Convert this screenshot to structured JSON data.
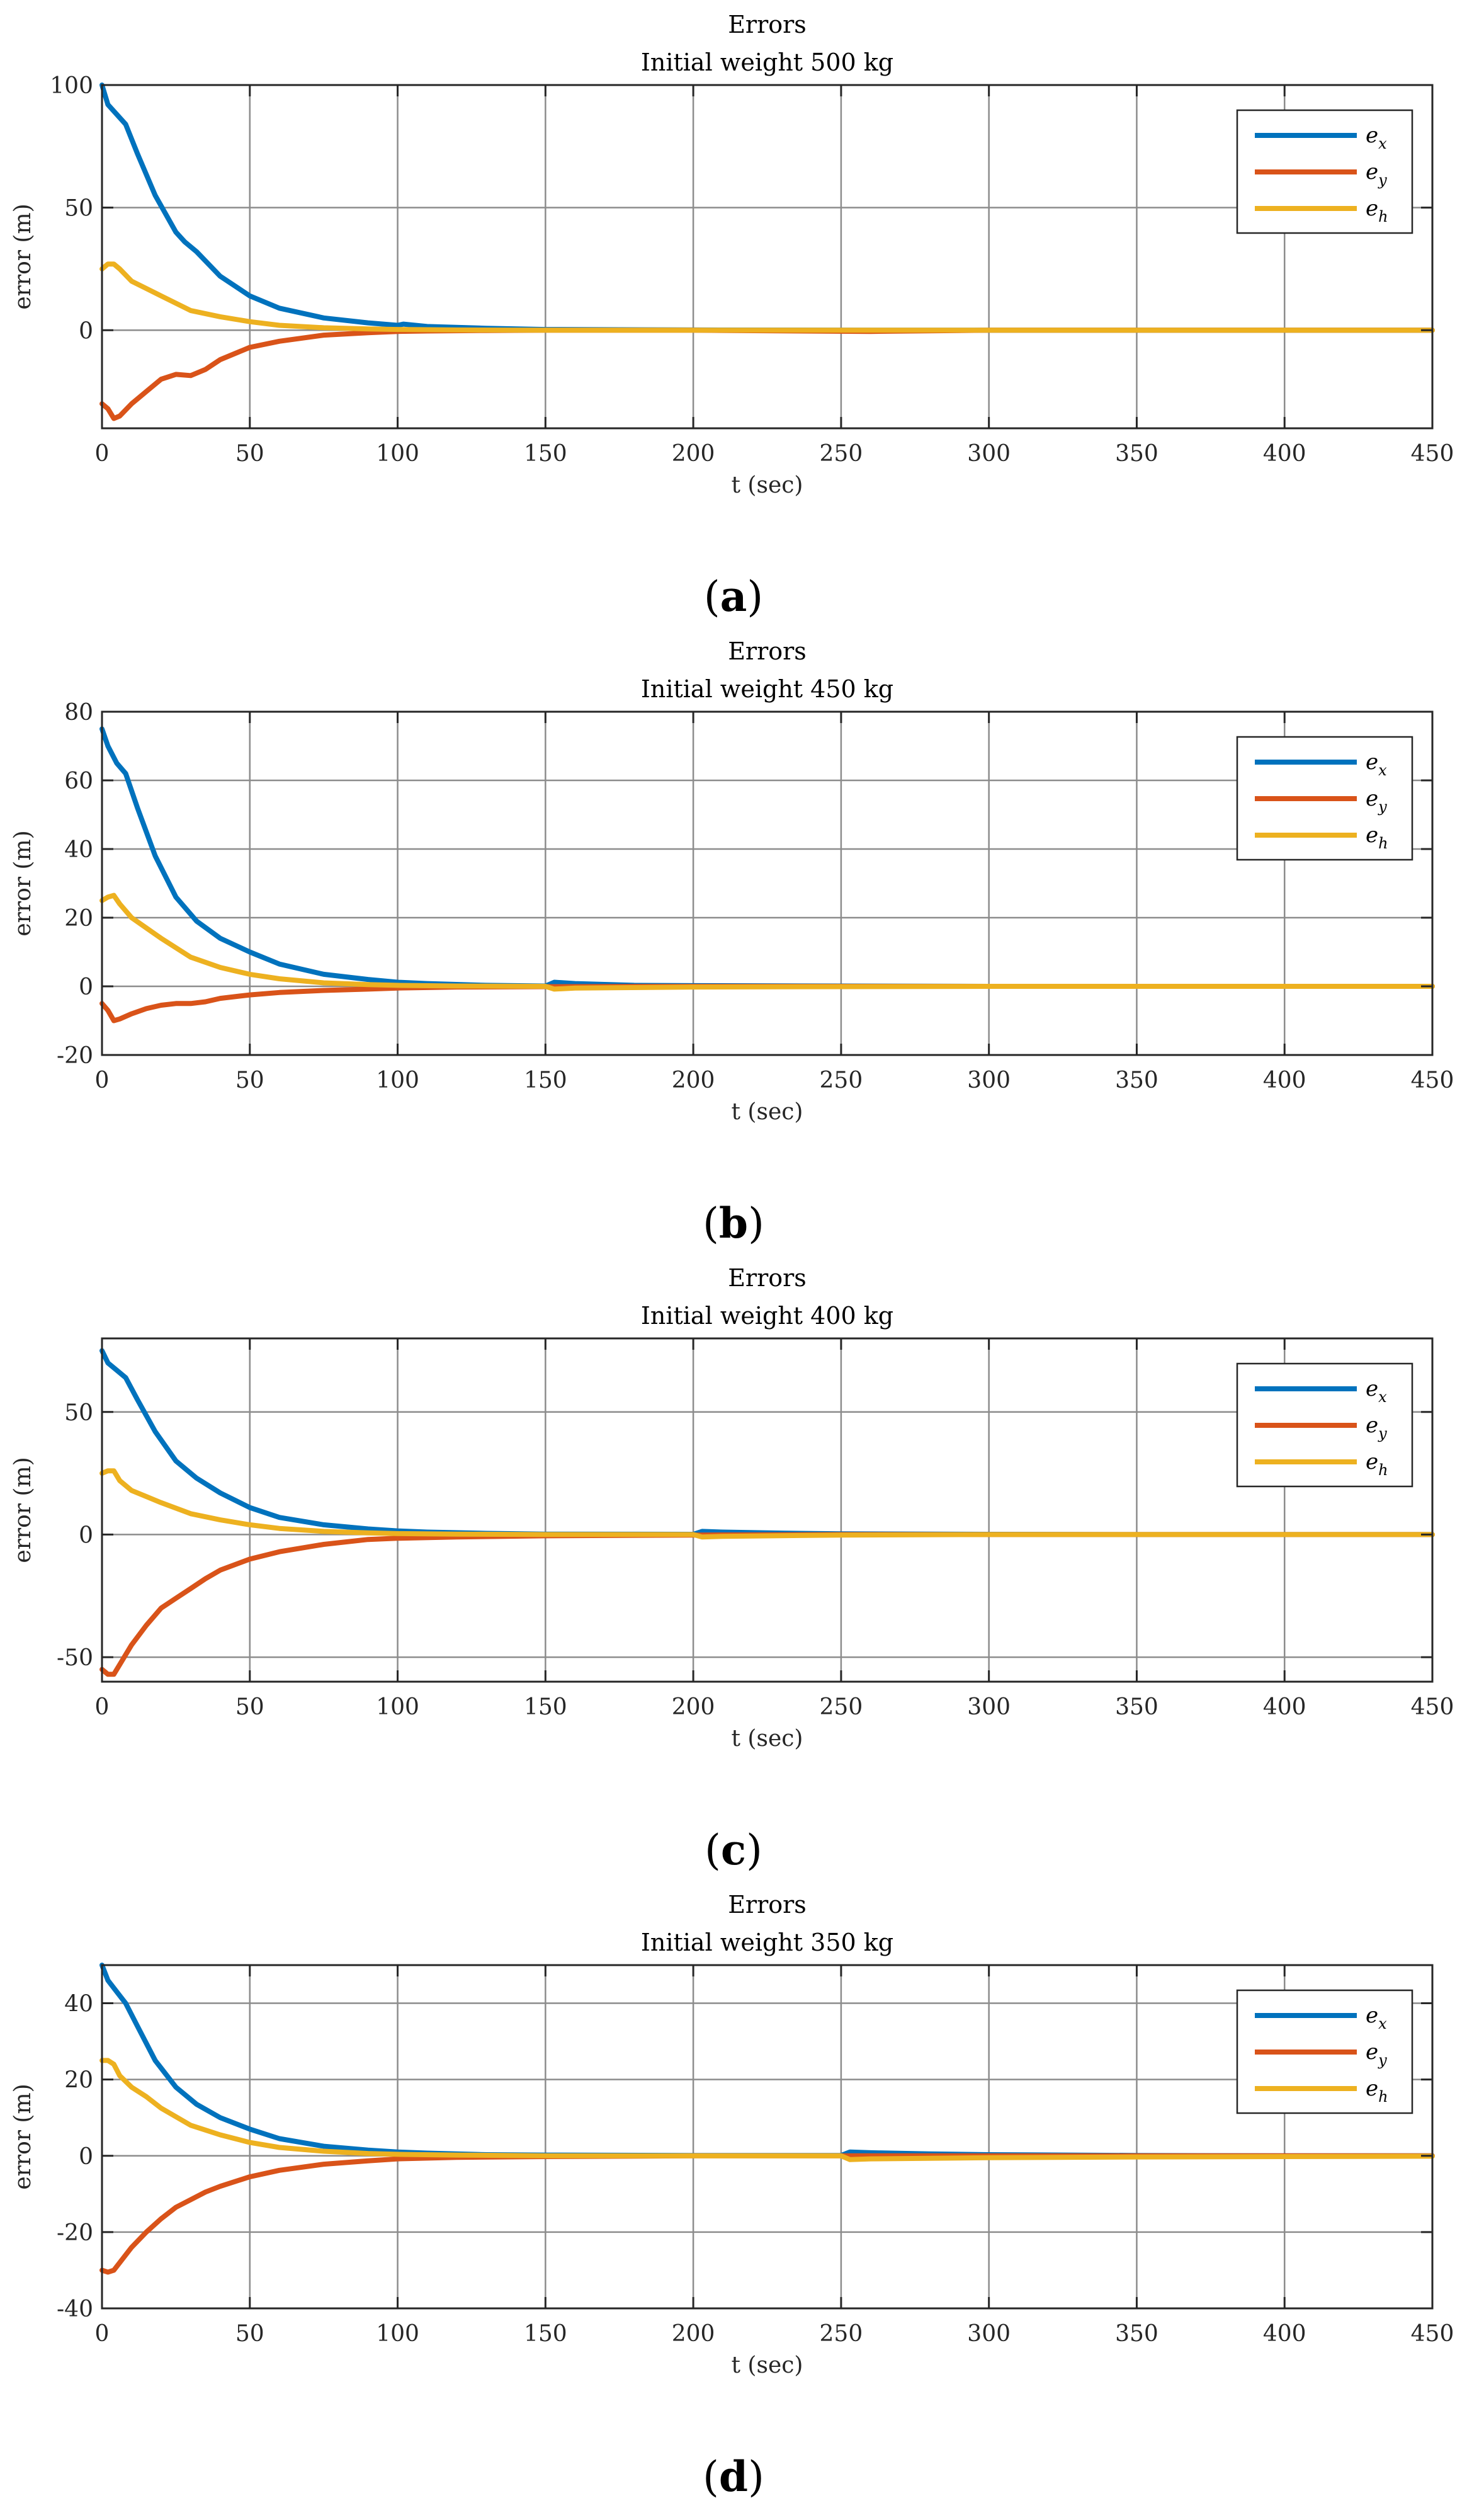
{
  "figure": {
    "subcaptions": [
      "(a)",
      "(b)",
      "(c)",
      "(d)"
    ]
  },
  "colors": {
    "e_x": "#0072BD",
    "e_y": "#D95319",
    "e_h": "#EDB120",
    "grid": "#8c8c8c",
    "axis": "#262626"
  },
  "chart_data": [
    {
      "type": "line",
      "title": "Errors",
      "subtitle": "Initial weight 500 kg",
      "xlabel": "t (sec)",
      "ylabel": "error (m)",
      "xlim": [
        0,
        450
      ],
      "ylim": [
        -40,
        100
      ],
      "xticks": [
        0,
        50,
        100,
        150,
        200,
        250,
        300,
        350,
        400,
        450
      ],
      "yticks": [
        0,
        50,
        100
      ],
      "grid": true,
      "legend": "top-right",
      "series": [
        {
          "name": "e_x",
          "label_base": "e",
          "label_sub": "x",
          "x": [
            0,
            2,
            5,
            8,
            12,
            18,
            25,
            28,
            32,
            40,
            50,
            60,
            75,
            90,
            100,
            102,
            110,
            130,
            150,
            200,
            260,
            300,
            350,
            400,
            450
          ],
          "y": [
            100,
            92,
            88,
            84,
            72,
            55,
            40,
            36,
            32,
            22,
            14,
            9,
            5,
            3,
            2,
            2.5,
            1.5,
            0.8,
            0.3,
            0.1,
            0.0,
            0.0,
            0.0,
            0.0,
            0.0
          ]
        },
        {
          "name": "e_y",
          "label_base": "e",
          "label_sub": "y",
          "x": [
            0,
            2,
            4,
            6,
            10,
            15,
            20,
            25,
            30,
            35,
            40,
            50,
            60,
            75,
            90,
            100,
            110,
            130,
            150,
            200,
            260,
            300,
            350,
            400,
            450
          ],
          "y": [
            -30,
            -32,
            -36,
            -35,
            -30,
            -25,
            -20,
            -18,
            -18.5,
            -16,
            -12,
            -7,
            -4.5,
            -2,
            -1,
            -0.5,
            -0.3,
            -0.1,
            0,
            0,
            -0.5,
            0,
            0,
            0,
            0
          ]
        },
        {
          "name": "e_h",
          "label_base": "e",
          "label_sub": "h",
          "x": [
            0,
            2,
            4,
            6,
            10,
            15,
            20,
            30,
            40,
            50,
            60,
            75,
            90,
            100,
            120,
            150,
            200,
            250,
            300,
            350,
            400,
            450
          ],
          "y": [
            25,
            27,
            27,
            25,
            20,
            17,
            14,
            8,
            5.5,
            3.5,
            2,
            1,
            0.5,
            0.3,
            0.1,
            0,
            0,
            0,
            0,
            0,
            0,
            0
          ]
        }
      ]
    },
    {
      "type": "line",
      "title": "Errors",
      "subtitle": "Initial weight 450 kg",
      "xlabel": "t (sec)",
      "ylabel": "error (m)",
      "xlim": [
        0,
        450
      ],
      "ylim": [
        -20,
        80
      ],
      "xticks": [
        0,
        50,
        100,
        150,
        200,
        250,
        300,
        350,
        400,
        450
      ],
      "yticks": [
        -20,
        0,
        20,
        40,
        60,
        80
      ],
      "grid": true,
      "legend": "top-right",
      "series": [
        {
          "name": "e_x",
          "label_base": "e",
          "label_sub": "x",
          "x": [
            0,
            2,
            5,
            8,
            12,
            18,
            25,
            32,
            40,
            50,
            60,
            75,
            90,
            100,
            110,
            130,
            150,
            153,
            160,
            180,
            200,
            250,
            300,
            350,
            400,
            450
          ],
          "y": [
            75,
            70,
            65,
            62,
            52,
            38,
            26,
            19,
            14,
            10,
            6.5,
            3.5,
            2,
            1.2,
            0.8,
            0.3,
            0.1,
            1.2,
            0.8,
            0.3,
            0.2,
            0.1,
            0,
            0,
            0,
            0
          ]
        },
        {
          "name": "e_y",
          "label_base": "e",
          "label_sub": "y",
          "x": [
            0,
            2,
            4,
            6,
            10,
            15,
            20,
            25,
            30,
            35,
            40,
            50,
            60,
            75,
            90,
            100,
            120,
            150,
            200,
            250,
            300,
            350,
            400,
            450
          ],
          "y": [
            -5,
            -7,
            -10,
            -9.5,
            -8,
            -6.5,
            -5.5,
            -5,
            -5,
            -4.5,
            -3.5,
            -2.5,
            -1.8,
            -1.2,
            -0.8,
            -0.5,
            -0.2,
            -0.1,
            0,
            0,
            0,
            0,
            0,
            0
          ]
        },
        {
          "name": "e_h",
          "label_base": "e",
          "label_sub": "h",
          "x": [
            0,
            2,
            4,
            6,
            10,
            15,
            20,
            30,
            40,
            50,
            60,
            75,
            90,
            100,
            120,
            150,
            153,
            160,
            200,
            250,
            300,
            350,
            400,
            450
          ],
          "y": [
            25,
            26,
            26.5,
            24,
            20,
            17,
            14,
            8.5,
            5.5,
            3.5,
            2.2,
            1,
            0.5,
            0.3,
            0.1,
            0,
            -0.8,
            -0.5,
            -0.2,
            -0.1,
            0,
            0,
            0,
            0
          ]
        }
      ]
    },
    {
      "type": "line",
      "title": "Errors",
      "subtitle": "Initial weight 400 kg",
      "xlabel": "t (sec)",
      "ylabel": "error (m)",
      "xlim": [
        0,
        450
      ],
      "ylim": [
        -60,
        80
      ],
      "xticks": [
        0,
        50,
        100,
        150,
        200,
        250,
        300,
        350,
        400,
        450
      ],
      "yticks": [
        -50,
        0,
        50
      ],
      "grid": true,
      "legend": "top-right",
      "series": [
        {
          "name": "e_x",
          "label_base": "e",
          "label_sub": "x",
          "x": [
            0,
            2,
            5,
            8,
            12,
            18,
            25,
            32,
            40,
            50,
            60,
            75,
            90,
            100,
            110,
            130,
            150,
            200,
            203,
            210,
            230,
            250,
            300,
            350,
            400,
            450
          ],
          "y": [
            75,
            70,
            67,
            64,
            55,
            42,
            30,
            23,
            17,
            11,
            7,
            4,
            2.3,
            1.5,
            1,
            0.5,
            0.2,
            0.1,
            1.3,
            1,
            0.6,
            0.3,
            0.1,
            0,
            0,
            0
          ]
        },
        {
          "name": "e_y",
          "label_base": "e",
          "label_sub": "y",
          "x": [
            0,
            2,
            4,
            6,
            10,
            15,
            20,
            25,
            30,
            35,
            40,
            50,
            60,
            75,
            90,
            100,
            120,
            150,
            200,
            250,
            300,
            350,
            400,
            450
          ],
          "y": [
            -55,
            -57,
            -57,
            -53,
            -45,
            -37,
            -30,
            -26,
            -22,
            -18,
            -14.5,
            -10,
            -7,
            -4,
            -2,
            -1.5,
            -1,
            -0.5,
            -0.2,
            0,
            0,
            0,
            0,
            0
          ]
        },
        {
          "name": "e_h",
          "label_base": "e",
          "label_sub": "h",
          "x": [
            0,
            2,
            4,
            6,
            10,
            15,
            20,
            30,
            40,
            50,
            60,
            75,
            90,
            100,
            120,
            150,
            200,
            203,
            210,
            250,
            300,
            350,
            400,
            450
          ],
          "y": [
            25,
            26,
            26,
            22,
            18,
            15.5,
            13,
            8.5,
            6,
            4,
            2.5,
            1.3,
            0.7,
            0.4,
            0.2,
            0,
            0,
            -1,
            -0.7,
            -0.2,
            0,
            0,
            0,
            0
          ]
        }
      ]
    },
    {
      "type": "line",
      "title": "Errors",
      "subtitle": "Initial weight 350 kg",
      "xlabel": "t (sec)",
      "ylabel": "error (m)",
      "xlim": [
        0,
        450
      ],
      "ylim": [
        -40,
        50
      ],
      "xticks": [
        0,
        50,
        100,
        150,
        200,
        250,
        300,
        350,
        400,
        450
      ],
      "yticks": [
        -40,
        -20,
        0,
        20,
        40
      ],
      "grid": true,
      "legend": "top-right",
      "series": [
        {
          "name": "e_x",
          "label_base": "e",
          "label_sub": "x",
          "x": [
            0,
            2,
            5,
            8,
            12,
            18,
            25,
            32,
            40,
            50,
            60,
            75,
            90,
            100,
            110,
            130,
            150,
            200,
            250,
            253,
            260,
            280,
            300,
            350,
            400,
            450
          ],
          "y": [
            50,
            46,
            43,
            40,
            34,
            25,
            18,
            13.5,
            10,
            7,
            4.5,
            2.5,
            1.5,
            1,
            0.7,
            0.3,
            0.2,
            0.1,
            0.1,
            1,
            0.8,
            0.5,
            0.3,
            0.1,
            0,
            0
          ]
        },
        {
          "name": "e_y",
          "label_base": "e",
          "label_sub": "y",
          "x": [
            0,
            2,
            4,
            6,
            10,
            15,
            20,
            25,
            30,
            35,
            40,
            50,
            60,
            75,
            90,
            100,
            120,
            150,
            200,
            250,
            300,
            350,
            400,
            450
          ],
          "y": [
            -30,
            -30.5,
            -30,
            -28,
            -24,
            -20,
            -16.5,
            -13.5,
            -11.5,
            -9.5,
            -8,
            -5.5,
            -3.8,
            -2.2,
            -1.3,
            -0.8,
            -0.4,
            -0.2,
            0,
            0,
            0,
            0,
            0,
            0
          ]
        },
        {
          "name": "e_h",
          "label_base": "e",
          "label_sub": "h",
          "x": [
            0,
            2,
            4,
            6,
            10,
            15,
            20,
            30,
            40,
            50,
            60,
            75,
            90,
            100,
            120,
            150,
            200,
            250,
            253,
            260,
            300,
            350,
            400,
            450
          ],
          "y": [
            25,
            25,
            24,
            21,
            18,
            15.5,
            12.5,
            8,
            5.5,
            3.5,
            2.2,
            1.2,
            0.6,
            0.4,
            0.2,
            0,
            0,
            0,
            -1,
            -0.8,
            -0.5,
            -0.3,
            -0.2,
            -0.1
          ]
        }
      ]
    }
  ]
}
